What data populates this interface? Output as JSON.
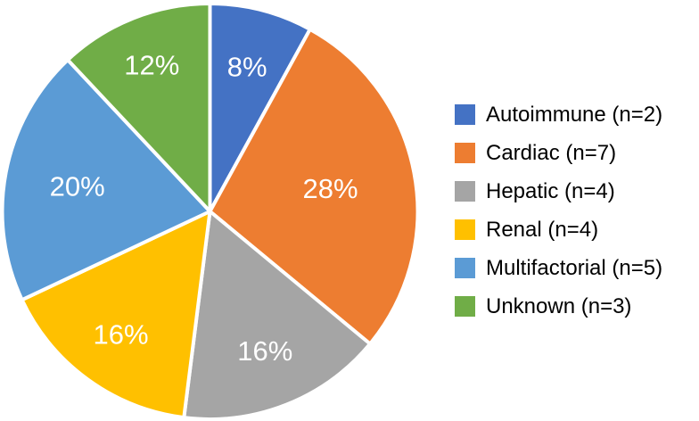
{
  "chart_data": {
    "type": "pie",
    "title": "",
    "start_angle_deg": 0,
    "direction": "clockwise",
    "legend_position": "right",
    "slice_border_color": "#FFFFFF",
    "label_color": "#FFFFFF",
    "background_color": "#FFFFFF",
    "slices": [
      {
        "label": "Autoimmune",
        "n": 2,
        "percent": 8,
        "percent_label": "8%",
        "legend_label": "Autoimmune (n=2)",
        "color": "#4472C4",
        "label_radius_fraction": 0.72
      },
      {
        "label": "Cardiac",
        "n": 7,
        "percent": 28,
        "percent_label": "28%",
        "legend_label": "Cardiac (n=7)",
        "color": "#ED7D31",
        "label_radius_fraction": 0.59
      },
      {
        "label": "Hepatic",
        "n": 4,
        "percent": 16,
        "percent_label": "16%",
        "legend_label": "Hepatic (n=4)",
        "color": "#A5A5A5",
        "label_radius_fraction": 0.72
      },
      {
        "label": "Renal",
        "n": 4,
        "percent": 16,
        "percent_label": "16%",
        "legend_label": "Renal (n=4)",
        "color": "#FFC000",
        "label_radius_fraction": 0.73
      },
      {
        "label": "Multifactorial",
        "n": 5,
        "percent": 20,
        "percent_label": "20%",
        "legend_label": "Multifactorial (n=5)",
        "color": "#5B9BD5",
        "label_radius_fraction": 0.65
      },
      {
        "label": "Unknown",
        "n": 3,
        "percent": 12,
        "percent_label": "12%",
        "legend_label": "Unknown (n=3)",
        "color": "#70AD47",
        "label_radius_fraction": 0.76
      }
    ]
  }
}
